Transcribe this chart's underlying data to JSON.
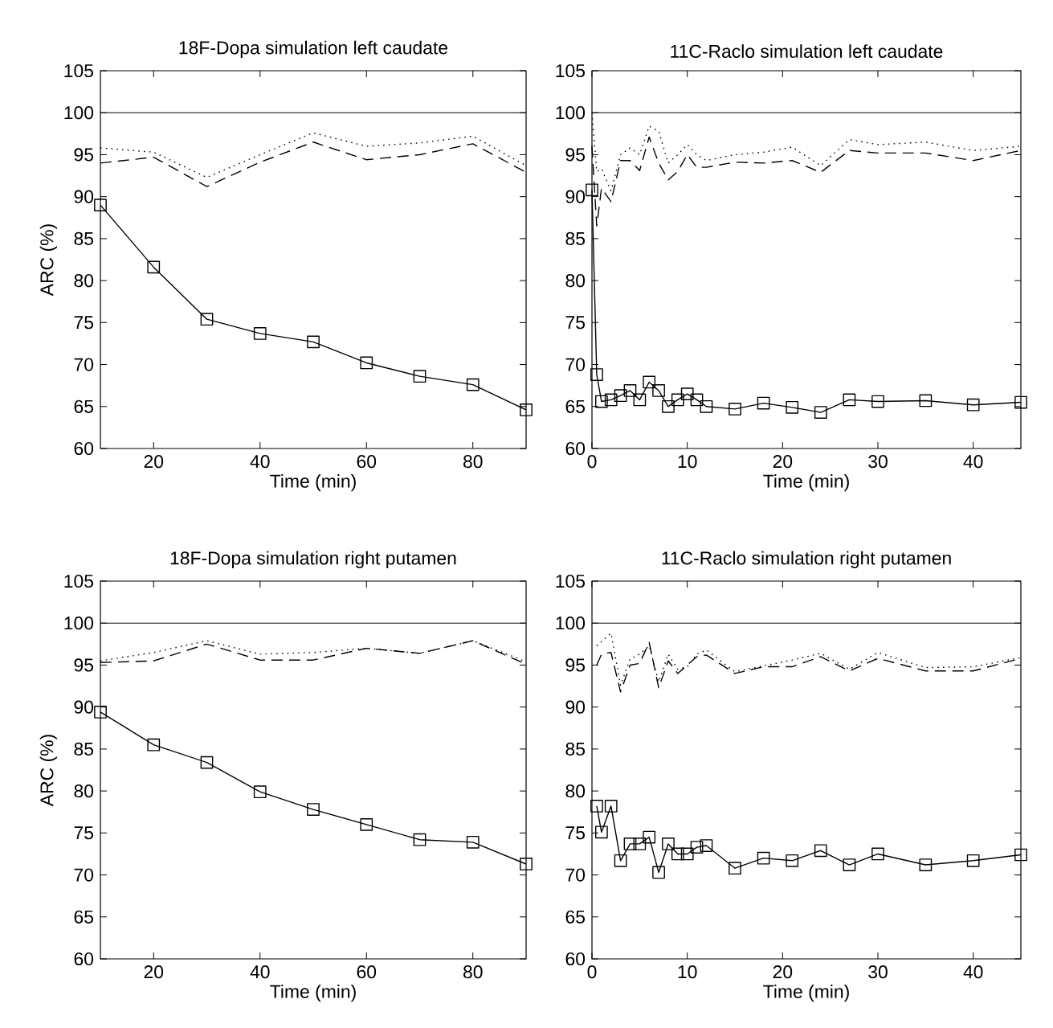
{
  "chart_data": [
    {
      "type": "line",
      "title": "18F-Dopa simulation left caudate",
      "xlabel": "Time (min)",
      "ylabel": "ARC (%)",
      "xlim": [
        10,
        90
      ],
      "xticks": [
        20,
        40,
        60,
        80
      ],
      "ylim": [
        60,
        105
      ],
      "yticks": [
        60,
        65,
        70,
        75,
        80,
        85,
        90,
        95,
        100,
        105
      ],
      "x": [
        10,
        20,
        30,
        40,
        50,
        60,
        70,
        80,
        90
      ],
      "ref_lines": [
        {
          "axis": "y",
          "value": 100,
          "color": "#000000"
        }
      ],
      "series": [
        {
          "color": "#000000",
          "marker": "square",
          "line_style": "solid",
          "values": [
            89.0,
            81.6,
            75.4,
            73.7,
            72.7,
            70.2,
            68.6,
            67.6,
            64.6
          ]
        },
        {
          "color": "#000000",
          "marker": "none",
          "line_style": "dashed",
          "values": [
            94.0,
            94.7,
            91.2,
            94.1,
            96.5,
            94.4,
            95.0,
            96.3,
            92.9
          ]
        },
        {
          "color": "#000000",
          "marker": "none",
          "line_style": "dotted",
          "values": [
            95.8,
            95.3,
            92.3,
            95.0,
            97.6,
            96.0,
            96.4,
            97.2,
            93.7
          ]
        }
      ]
    },
    {
      "type": "line",
      "title": "11C-Raclo simulation left caudate",
      "xlabel": "Time (min)",
      "xlim": [
        0,
        45
      ],
      "xticks": [
        0,
        10,
        20,
        30,
        40
      ],
      "ylim": [
        60,
        105
      ],
      "yticks": [
        60,
        65,
        70,
        75,
        80,
        85,
        90,
        95,
        100,
        105
      ],
      "x": [
        0,
        0.5,
        1,
        2,
        3,
        4,
        5,
        6,
        7,
        8,
        9,
        10,
        11,
        12,
        15,
        18,
        21,
        24,
        27,
        30,
        35,
        40,
        45
      ],
      "ref_lines": [
        {
          "axis": "y",
          "value": 100,
          "color": "#000000"
        }
      ],
      "series": [
        {
          "color": "#000000",
          "marker": "square",
          "line_style": "solid",
          "values": [
            90.8,
            68.8,
            65.6,
            65.8,
            66.3,
            66.9,
            65.8,
            67.9,
            66.9,
            65.0,
            65.8,
            66.5,
            65.8,
            65.0,
            64.7,
            65.4,
            64.9,
            64.3,
            65.8,
            65.6,
            65.7,
            65.2,
            65.5
          ]
        },
        {
          "color": "#000000",
          "marker": "none",
          "line_style": "dashed",
          "values": [
            96,
            86.5,
            91,
            89.4,
            94.3,
            94.3,
            93.1,
            97.1,
            94,
            92,
            93,
            95,
            93.5,
            93.5,
            94.1,
            94,
            94.3,
            92.9,
            95.5,
            95.2,
            95.2,
            94.3,
            95.5
          ]
        },
        {
          "color": "#000000",
          "marker": "none",
          "line_style": "dotted",
          "values": [
            100,
            93,
            93.3,
            90.7,
            95,
            95.8,
            95,
            98.4,
            97.8,
            94,
            95,
            96.2,
            95,
            94.3,
            95,
            95.3,
            95.9,
            93.7,
            96.8,
            96.2,
            96.5,
            95.5,
            96
          ]
        }
      ]
    },
    {
      "type": "line",
      "title": "18F-Dopa simulation right putamen",
      "xlabel": "Time (min)",
      "ylabel": "ARC (%)",
      "xlim": [
        10,
        90
      ],
      "xticks": [
        20,
        40,
        60,
        80
      ],
      "ylim": [
        60,
        105
      ],
      "yticks": [
        60,
        65,
        70,
        75,
        80,
        85,
        90,
        95,
        100,
        105
      ],
      "x": [
        10,
        20,
        30,
        40,
        50,
        60,
        70,
        80,
        90
      ],
      "ref_lines": [
        {
          "axis": "y",
          "value": 100,
          "color": "#000000"
        }
      ],
      "series": [
        {
          "color": "#000000",
          "marker": "square",
          "line_style": "solid",
          "values": [
            89.4,
            85.5,
            83.4,
            79.9,
            77.8,
            76.0,
            74.2,
            73.9,
            71.3
          ]
        },
        {
          "color": "#000000",
          "marker": "none",
          "line_style": "dashed",
          "values": [
            95.3,
            95.5,
            97.5,
            95.6,
            95.6,
            97.0,
            96.4,
            97.9,
            95.1
          ]
        },
        {
          "color": "#000000",
          "marker": "none",
          "line_style": "dotted",
          "values": [
            95.5,
            96.5,
            97.9,
            96.3,
            96.5,
            97.0,
            96.4,
            97.9,
            95.4
          ]
        }
      ]
    },
    {
      "type": "line",
      "title": "11C-Raclo simulation right putamen",
      "xlabel": "Time (min)",
      "xlim": [
        0,
        45
      ],
      "xticks": [
        0,
        10,
        20,
        30,
        40
      ],
      "ylim": [
        60,
        105
      ],
      "yticks": [
        60,
        65,
        70,
        75,
        80,
        85,
        90,
        95,
        100,
        105
      ],
      "x": [
        0.5,
        1,
        2,
        3,
        4,
        5,
        6,
        7,
        8,
        9,
        10,
        11,
        12,
        15,
        18,
        21,
        24,
        27,
        30,
        35,
        40,
        45
      ],
      "ref_lines": [
        {
          "axis": "y",
          "value": 100,
          "color": "#000000"
        }
      ],
      "series": [
        {
          "color": "#000000",
          "marker": "square",
          "line_style": "solid",
          "values": [
            78.2,
            75.1,
            78.2,
            71.7,
            73.7,
            73.7,
            74.5,
            70.3,
            73.7,
            72.5,
            72.5,
            73.3,
            73.5,
            70.8,
            72.0,
            71.7,
            72.9,
            71.2,
            72.5,
            71.2,
            71.7,
            72.4
          ]
        },
        {
          "color": "#000000",
          "marker": "none",
          "line_style": "dashed",
          "values": [
            95,
            96.3,
            96.5,
            91.8,
            95,
            95.2,
            97.7,
            92.3,
            95.5,
            94,
            95,
            96,
            96.2,
            94,
            94.8,
            94.8,
            96,
            94.3,
            95.8,
            94.3,
            94.3,
            95.8
          ]
        },
        {
          "color": "#000000",
          "marker": "none",
          "line_style": "dotted",
          "values": [
            97.3,
            97.8,
            98.8,
            92.6,
            95.7,
            96.3,
            97.3,
            93,
            96.3,
            94.5,
            94.8,
            96.3,
            96.8,
            94.2,
            94.9,
            95.6,
            96.4,
            94.5,
            96.5,
            94.7,
            94.8,
            95.9
          ]
        }
      ]
    }
  ]
}
